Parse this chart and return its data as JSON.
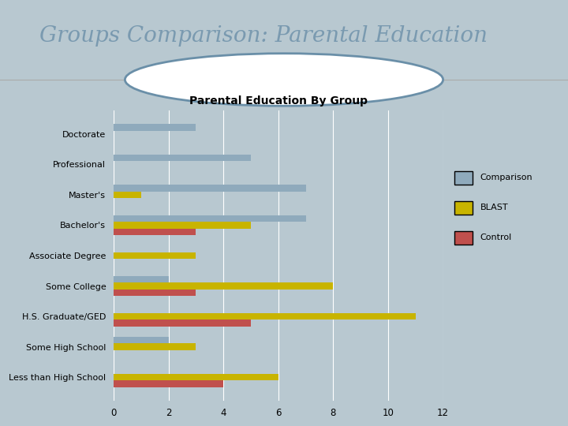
{
  "title_main": "Groups Comparison: Parental Education",
  "chart_title": "Parental Education By Group",
  "categories": [
    "Less than High School",
    "Some High School",
    "H.S. Graduate/GED",
    "Some College",
    "Associate Degree",
    "Bachelor's",
    "Master's",
    "Professional",
    "Doctorate"
  ],
  "comparison": [
    0,
    2,
    0,
    2,
    0,
    7,
    7,
    5,
    3
  ],
  "blast": [
    6,
    3,
    11,
    8,
    3,
    5,
    1,
    0,
    0
  ],
  "control": [
    4,
    0,
    5,
    3,
    0,
    3,
    0,
    0,
    0
  ],
  "comparison_color": "#8faabc",
  "blast_color": "#c8b400",
  "control_color": "#c0504d",
  "bg_outer": "#b8c8d0",
  "bg_top": "#ffffff",
  "title_color": "#7a9ab0",
  "chart_title_color": "#000000",
  "xlim": [
    0,
    12
  ],
  "xticks": [
    0,
    2,
    4,
    6,
    8,
    10,
    12
  ],
  "bar_height": 0.22,
  "legend_labels": [
    "Comparison",
    "BLAST",
    "Control"
  ],
  "circle_color": "#6a8fa8",
  "separator_color": "#aaaaaa"
}
